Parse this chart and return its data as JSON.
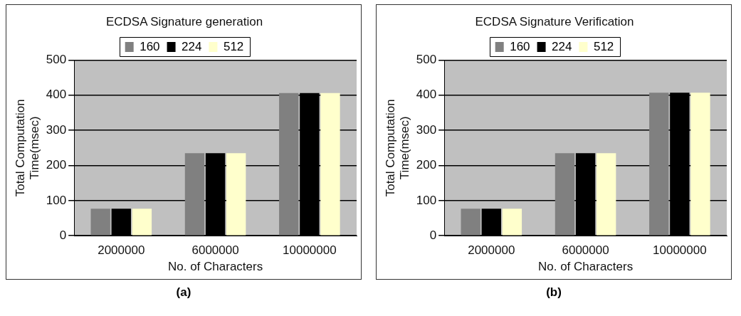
{
  "chart_data": [
    {
      "type": "bar",
      "title": "ECDSA Signature generation",
      "xlabel": "No. of Characters",
      "ylabel": "Total Computation\nTime(msec)",
      "categories": [
        "2000000",
        "6000000",
        "10000000"
      ],
      "series": [
        {
          "name": "160",
          "color": "#808080",
          "values": [
            77,
            235,
            406
          ]
        },
        {
          "name": "224",
          "color": "#000000",
          "values": [
            77,
            235,
            406
          ]
        },
        {
          "name": "512",
          "color": "#ffffcc",
          "values": [
            77,
            235,
            406
          ]
        }
      ],
      "ylim": [
        0,
        500
      ],
      "yticks": [
        0,
        100,
        200,
        300,
        400,
        500
      ],
      "grid": "y",
      "legend": "top",
      "annotations": [
        "(a)"
      ]
    },
    {
      "type": "bar",
      "title": "ECDSA Signature Verification",
      "xlabel": "No. of Characters",
      "ylabel": "Total Computation\nTime(msec)",
      "categories": [
        "2000000",
        "6000000",
        "10000000"
      ],
      "series": [
        {
          "name": "160",
          "color": "#808080",
          "values": [
            77,
            235,
            407
          ]
        },
        {
          "name": "224",
          "color": "#000000",
          "values": [
            77,
            235,
            407
          ]
        },
        {
          "name": "512",
          "color": "#ffffcc",
          "values": [
            77,
            235,
            407
          ]
        }
      ],
      "ylim": [
        0,
        500
      ],
      "yticks": [
        0,
        100,
        200,
        300,
        400,
        500
      ],
      "grid": "y",
      "legend": "top",
      "annotations": [
        "(b)"
      ]
    }
  ]
}
